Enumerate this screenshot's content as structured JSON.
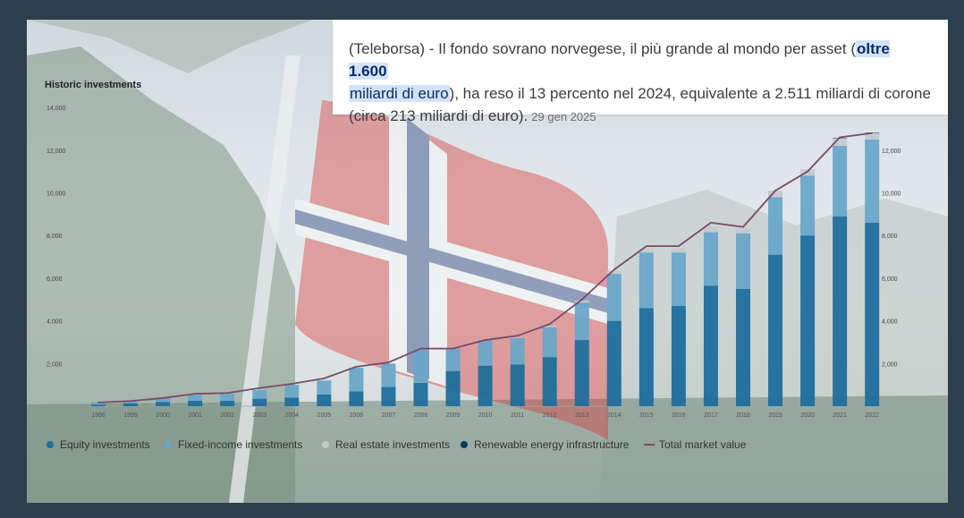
{
  "news": {
    "part1": "(Teleborsa) - Il fondo sovrano norvegese, il più grande al mondo per asset (",
    "highlight_bold": "oltre 1.600",
    "highlight_newline": "miliardi di euro",
    "part2": "), ha reso il 13 percento nel 2024, equivalente a 2.511 miliardi di corone (circa 213 miliardi di euro).",
    "date": "29 gen 2025"
  },
  "chart_data": {
    "type": "bar",
    "stacked": true,
    "title": "Historic investments",
    "ylim": [
      0,
      14000
    ],
    "y_ticks_left": [
      "2,000",
      "4,000",
      "6,000",
      "8,000",
      "10,000",
      "12,000",
      "14,000"
    ],
    "y_ticks_right": [
      "2,000",
      "4,000",
      "6,000",
      "8,000",
      "10,000",
      "12,000"
    ],
    "categories": [
      "1998",
      "1999",
      "2000",
      "2001",
      "2002",
      "2003",
      "2004",
      "2005",
      "2006",
      "2007",
      "2008",
      "2009",
      "2010",
      "2011",
      "2012",
      "2013",
      "2014",
      "2015",
      "2016",
      "2017",
      "2018",
      "2019",
      "2020",
      "2021",
      "2022"
    ],
    "series": [
      {
        "name": "Equity investments",
        "color": "#1f6e9c",
        "values": [
          70,
          130,
          200,
          250,
          250,
          350,
          400,
          550,
          700,
          900,
          1100,
          1650,
          1900,
          1950,
          2300,
          3100,
          4000,
          4600,
          4700,
          5650,
          5500,
          7100,
          8000,
          8900,
          8600
        ]
      },
      {
        "name": "Fixed-income investments",
        "color": "#6aa6c8",
        "values": [
          110,
          100,
          200,
          280,
          350,
          400,
          600,
          650,
          1100,
          1100,
          1600,
          1050,
          1200,
          1250,
          1400,
          1750,
          2200,
          2600,
          2500,
          2500,
          2600,
          2700,
          2800,
          3300,
          3900
        ]
      },
      {
        "name": "Real estate investments",
        "color": "#c3c9cd",
        "values": [
          0,
          0,
          0,
          0,
          0,
          0,
          0,
          0,
          0,
          0,
          0,
          0,
          10,
          20,
          60,
          100,
          150,
          200,
          200,
          250,
          250,
          300,
          300,
          350,
          300
        ]
      },
      {
        "name": "Renewable energy infrastructure",
        "color": "#0a3a5c",
        "values": [
          0,
          0,
          0,
          0,
          0,
          0,
          0,
          0,
          0,
          0,
          0,
          0,
          0,
          0,
          0,
          0,
          0,
          0,
          0,
          0,
          0,
          0,
          0,
          20,
          20
        ]
      }
    ],
    "line_series": {
      "name": "Total market value",
      "color": "#7a4a66",
      "values": [
        170,
        240,
        380,
        580,
        620,
        850,
        1050,
        1300,
        1850,
        2050,
        2700,
        2700,
        3100,
        3300,
        3850,
        5000,
        6400,
        7500,
        7500,
        8600,
        8400,
        10100,
        11000,
        12600,
        12800
      ]
    },
    "legend_position": "bottom"
  }
}
